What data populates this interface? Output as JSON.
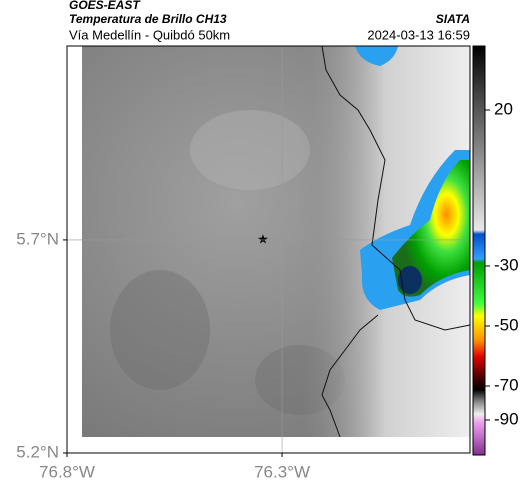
{
  "header": {
    "source": "GOES-EAST",
    "title": "Temperatura de Brillo CH13",
    "org": "SIATA",
    "subtitle": "Vía Medellín - Quibdó 50km",
    "datetime": "2024-03-13 16:59"
  },
  "map": {
    "lon_range": [
      -76.8,
      -75.863
    ],
    "lat_range": [
      5.2,
      6.155
    ],
    "lon_ticks": [
      {
        "value": -76.8,
        "label": "76.8°W"
      },
      {
        "value": -76.3,
        "label": "76.3°W"
      }
    ],
    "lat_ticks": [
      {
        "value": 5.7,
        "label": "5.7°N"
      },
      {
        "value": 5.2,
        "label": "5.2°N"
      }
    ]
  },
  "colorbar": {
    "ticks": [
      20,
      -30,
      -50,
      -70,
      -90
    ]
  }
}
